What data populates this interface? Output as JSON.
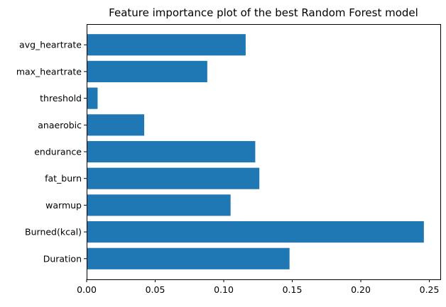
{
  "chart_data": {
    "type": "bar",
    "orientation": "horizontal",
    "title": "Feature importance plot of the best Random Forest model",
    "xlabel": "",
    "ylabel": "",
    "categories": [
      "Duration",
      "Burned(kcal)",
      "warmup",
      "fat_burn",
      "endurance",
      "anaerobic",
      "threshold",
      "max_heartrate",
      "avg_heartrate"
    ],
    "values": [
      0.148,
      0.246,
      0.105,
      0.126,
      0.123,
      0.042,
      0.008,
      0.088,
      0.116
    ],
    "xlim": [
      0,
      0.258
    ],
    "xticks": [
      "0.00",
      "0.05",
      "0.10",
      "0.15",
      "0.20",
      "0.25"
    ],
    "bar_color": "#1f77b4",
    "grid": false,
    "legend": "none"
  }
}
